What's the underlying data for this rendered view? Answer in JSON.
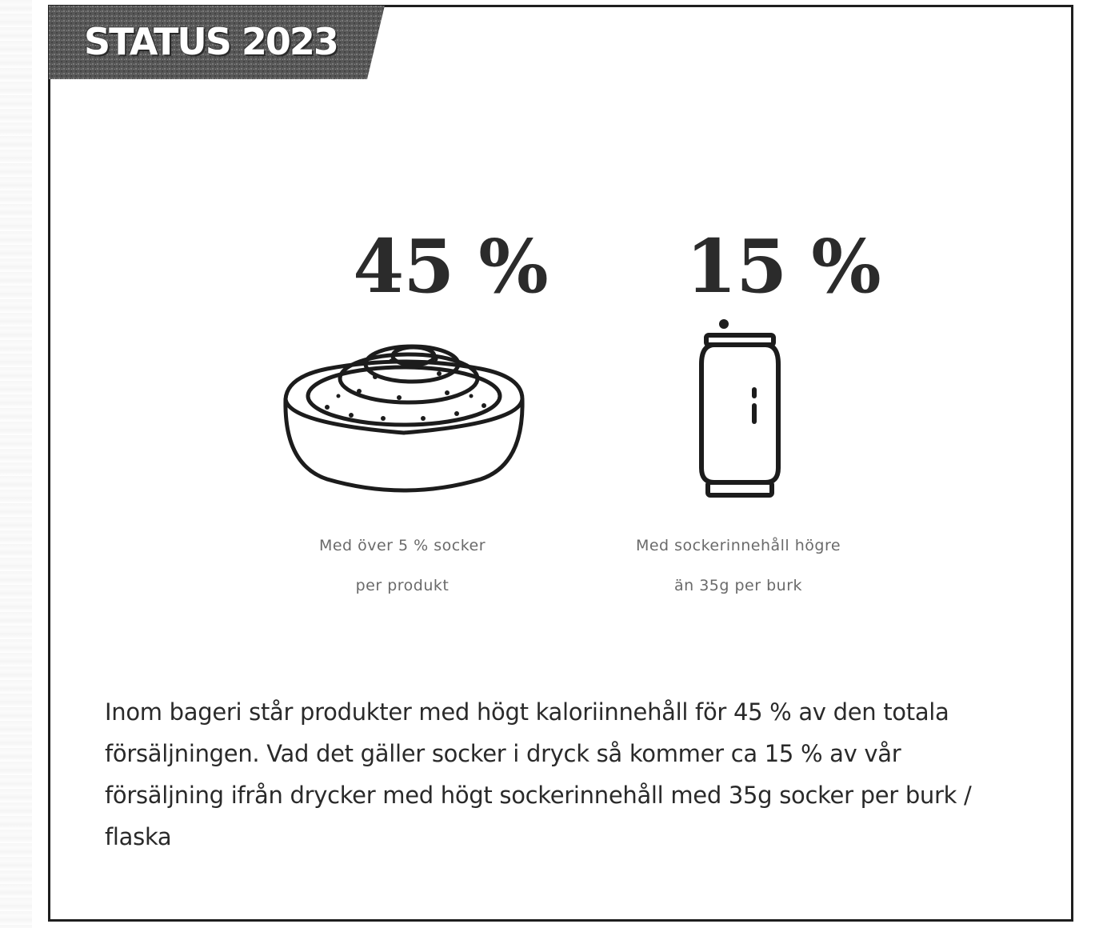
{
  "banner": {
    "label": "STATUS 2023"
  },
  "stats": [
    {
      "value": "45 %",
      "icon": "cinnamon-bun-icon",
      "caption_line1": "Med över 5 % socker",
      "caption_line2": "per produkt"
    },
    {
      "value": "15 %",
      "icon": "soda-can-icon",
      "caption_line1": "Med sockerinnehåll högre",
      "caption_line2": "än 35g per burk"
    }
  ],
  "body": {
    "paragraph": "Inom bageri står produkter med högt kaloriinnehåll för 45 % av den totala försäljningen. Vad det gäller socker i dryck så kommer ca 15 % av vår försäljning ifrån drycker med högt sockerinnehåll med 35g socker per burk / flaska"
  },
  "colors": {
    "border": "#1f1f1f",
    "banner_bg": "#5a5a5a",
    "text": "#2a2a2a"
  }
}
